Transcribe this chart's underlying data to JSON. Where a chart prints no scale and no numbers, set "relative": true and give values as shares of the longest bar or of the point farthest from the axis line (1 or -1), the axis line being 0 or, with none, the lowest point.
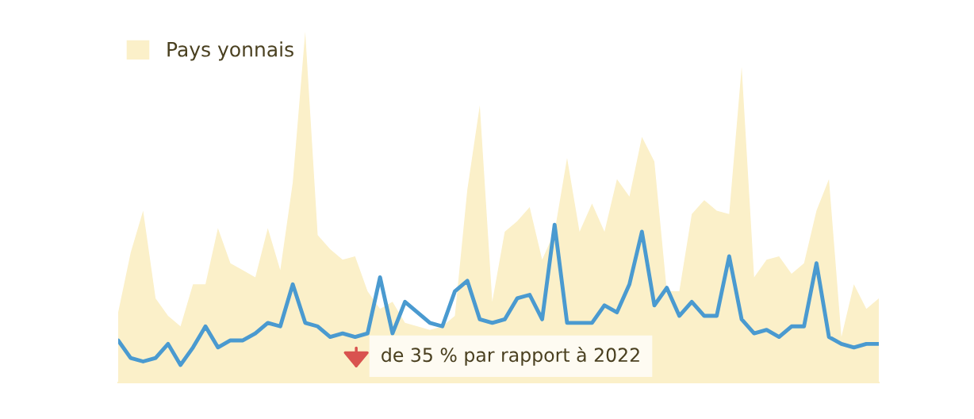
{
  "chart_data": {
    "type": "area",
    "relative": true,
    "categories": [
      null,
      null,
      null,
      null,
      null,
      null,
      null,
      null,
      null,
      null,
      null,
      null,
      null,
      null,
      null,
      null,
      null,
      null,
      null,
      null,
      null,
      null,
      null,
      null,
      null,
      null,
      null,
      null,
      null,
      null,
      null,
      null,
      null,
      null,
      null,
      null,
      null,
      null,
      null,
      null,
      null,
      null,
      null,
      null,
      null,
      null,
      null,
      null,
      null,
      null,
      null,
      null,
      null,
      null,
      null,
      null,
      null,
      null,
      null,
      null,
      null,
      null
    ],
    "series": [
      {
        "name": "Pays yonnais",
        "type": "area",
        "color": "#fbf0c9",
        "values": [
          0.2,
          0.37,
          0.49,
          0.24,
          0.19,
          0.16,
          0.28,
          0.28,
          0.44,
          0.34,
          0.32,
          0.3,
          0.44,
          0.32,
          0.57,
          1,
          0.42,
          0.38,
          0.35,
          0.36,
          0.26,
          0.21,
          0.23,
          0.17,
          0.16,
          0.15,
          0.16,
          0.19,
          0.55,
          0.79,
          0.23,
          0.43,
          0.46,
          0.5,
          0.35,
          0.43,
          0.64,
          0.43,
          0.51,
          0.43,
          0.58,
          0.53,
          0.7,
          0.63,
          0.26,
          0.26,
          0.48,
          0.52,
          0.49,
          0.48,
          0.9,
          0.3,
          0.35,
          0.36,
          0.31,
          0.34,
          0.49,
          0.58,
          0.13,
          0.28,
          0.21,
          0.24
        ]
      },
      {
        "type": "line",
        "color": "#4a9ad0",
        "values": [
          0.12,
          0.07,
          0.06,
          0.07,
          0.11,
          0.05,
          0.1,
          0.16,
          0.1,
          0.12,
          0.12,
          0.14,
          0.17,
          0.16,
          0.28,
          0.17,
          0.16,
          0.13,
          0.14,
          0.13,
          0.14,
          0.3,
          0.14,
          0.23,
          0.2,
          0.17,
          0.16,
          0.26,
          0.29,
          0.18,
          0.17,
          0.18,
          0.24,
          0.25,
          0.18,
          0.45,
          0.17,
          0.17,
          0.17,
          0.22,
          0.2,
          0.28,
          0.43,
          0.22,
          0.27,
          0.19,
          0.23,
          0.19,
          0.19,
          0.36,
          0.18,
          0.14,
          0.15,
          0.13,
          0.16,
          0.16,
          0.34,
          0.13,
          0.11,
          0.1,
          0.11,
          0.11
        ]
      }
    ],
    "legend": "top left",
    "annotations": [
      "de 35 % par rapport à 2022"
    ]
  }
}
